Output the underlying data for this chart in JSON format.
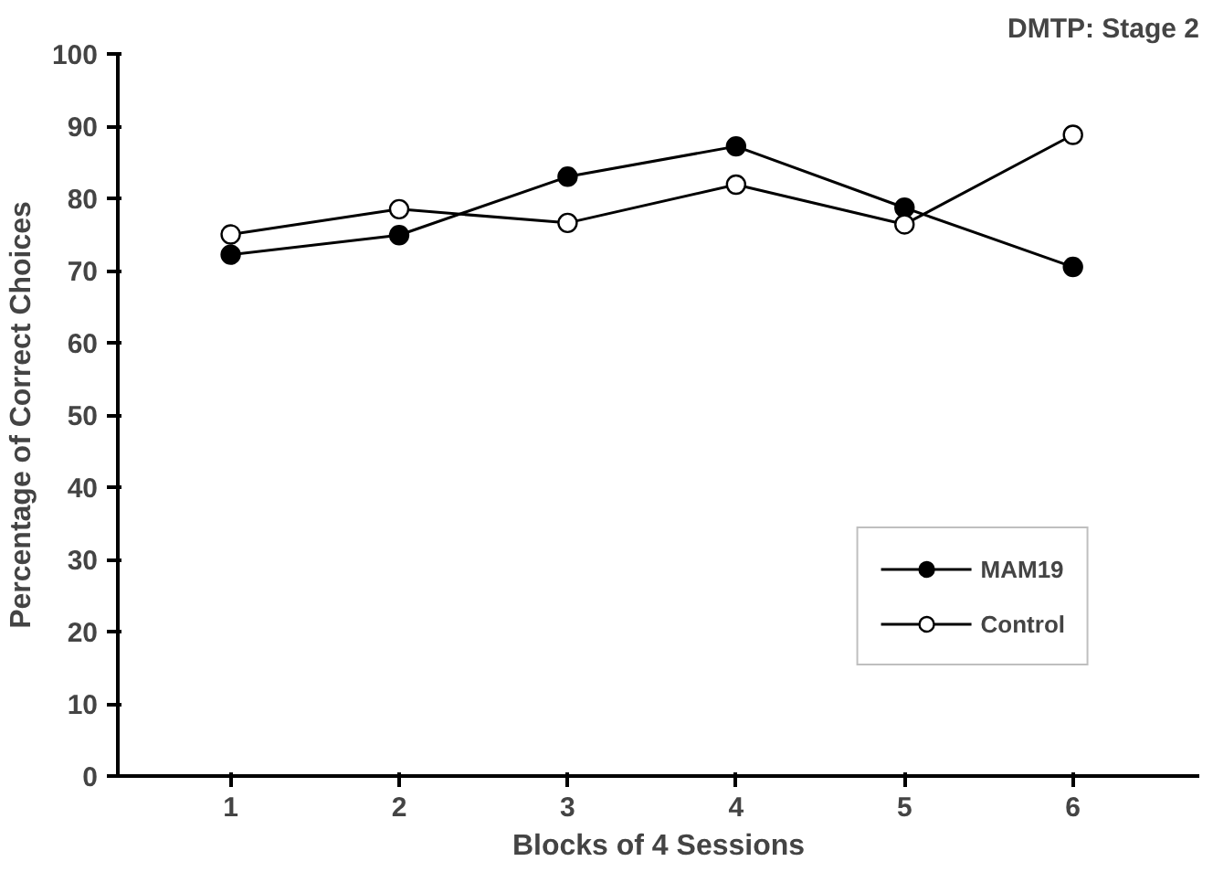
{
  "chart_data": {
    "type": "line",
    "title": "DMTP: Stage 2",
    "xlabel": "Blocks of 4 Sessions",
    "ylabel": "Percentage of Correct Choices",
    "x": [
      1,
      2,
      3,
      4,
      5,
      6
    ],
    "series": [
      {
        "name": "MAM19",
        "color": "#000000",
        "values": [
          72.2,
          74.9,
          83.0,
          87.2,
          78.7,
          70.5
        ]
      },
      {
        "name": "Control",
        "color": "#ffffff",
        "values": [
          75.0,
          78.5,
          76.6,
          81.9,
          76.4,
          88.8
        ]
      }
    ],
    "xlim": [
      0.33,
      6.75
    ],
    "xticks": [
      1,
      2,
      3,
      4,
      5,
      6
    ],
    "ylim": [
      0,
      100
    ],
    "yticks": [
      0,
      10,
      20,
      30,
      40,
      50,
      60,
      70,
      80,
      90,
      100
    ],
    "grid": false,
    "legend": "bottom right",
    "marker": "circle",
    "line_style": "solid"
  }
}
